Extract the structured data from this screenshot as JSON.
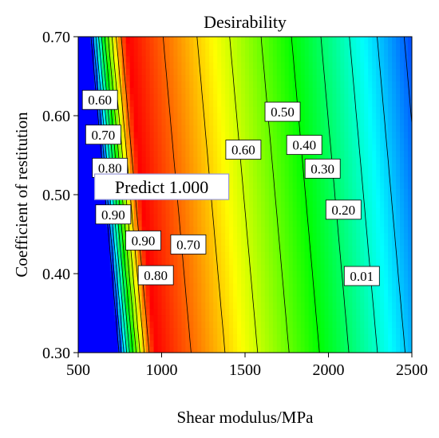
{
  "chart_data": {
    "type": "heatmap",
    "title": "Desirability",
    "xlabel": "Shear modulus/MPa",
    "ylabel": "Coefficient of restitution",
    "xlim": [
      500,
      2500
    ],
    "ylim": [
      0.3,
      0.7
    ],
    "x_ticks": [
      "500",
      "1000",
      "1500",
      "2000",
      "2500"
    ],
    "y_ticks": [
      "0.30",
      "0.40",
      "0.50",
      "0.60",
      "0.70"
    ],
    "colormap": [
      "#0000ff",
      "#00ffff",
      "#00ff00",
      "#ffff00",
      "#ff0000"
    ],
    "contour_levels": [
      0.01,
      0.1,
      0.2,
      0.3,
      0.4,
      0.5,
      0.6,
      0.7,
      0.8,
      0.9
    ],
    "contour_labels": [
      {
        "text": "0.60",
        "x": 630,
        "y": 0.62
      },
      {
        "text": "0.70",
        "x": 650,
        "y": 0.576
      },
      {
        "text": "0.80",
        "x": 690,
        "y": 0.534
      },
      {
        "text": "0.90",
        "x": 710,
        "y": 0.475
      },
      {
        "text": "0.90",
        "x": 890,
        "y": 0.442
      },
      {
        "text": "0.70",
        "x": 1160,
        "y": 0.437
      },
      {
        "text": "0.80",
        "x": 965,
        "y": 0.398
      },
      {
        "text": "0.60",
        "x": 1490,
        "y": 0.557
      },
      {
        "text": "0.50",
        "x": 1725,
        "y": 0.605
      },
      {
        "text": "0.40",
        "x": 1855,
        "y": 0.563
      },
      {
        "text": "0.30",
        "x": 1965,
        "y": 0.533
      },
      {
        "text": "0.20",
        "x": 2090,
        "y": 0.481
      },
      {
        "text": "0.01",
        "x": 2200,
        "y": 0.397
      }
    ],
    "prediction": {
      "label": "Predict  1.000",
      "x": 900,
      "y": 0.51
    }
  }
}
